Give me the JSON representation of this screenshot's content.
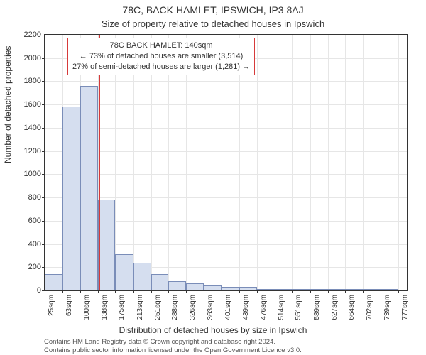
{
  "title_main": "78C, BACK HAMLET, IPSWICH, IP3 8AJ",
  "title_sub": "Size of property relative to detached houses in Ipswich",
  "y_axis_label": "Number of detached properties",
  "x_axis_label": "Distribution of detached houses by size in Ipswich",
  "chart": {
    "type": "histogram",
    "x_min": 25,
    "x_max": 795,
    "y_min": 0,
    "y_max": 2200,
    "y_ticks": [
      0,
      200,
      400,
      600,
      800,
      1000,
      1200,
      1400,
      1600,
      1800,
      2000,
      2200
    ],
    "x_tick_values": [
      25,
      63,
      100,
      138,
      175,
      213,
      251,
      288,
      326,
      363,
      401,
      439,
      476,
      514,
      551,
      589,
      627,
      664,
      702,
      739,
      777
    ],
    "x_tick_labels": [
      "25sqm",
      "63sqm",
      "100sqm",
      "138sqm",
      "175sqm",
      "213sqm",
      "251sqm",
      "288sqm",
      "326sqm",
      "363sqm",
      "401sqm",
      "439sqm",
      "476sqm",
      "514sqm",
      "551sqm",
      "589sqm",
      "627sqm",
      "664sqm",
      "702sqm",
      "739sqm",
      "777sqm"
    ],
    "bars": [
      {
        "x0": 25,
        "x1": 63,
        "value": 140
      },
      {
        "x0": 63,
        "x1": 100,
        "value": 1580
      },
      {
        "x0": 100,
        "x1": 138,
        "value": 1760
      },
      {
        "x0": 138,
        "x1": 175,
        "value": 780
      },
      {
        "x0": 175,
        "x1": 213,
        "value": 310
      },
      {
        "x0": 213,
        "x1": 251,
        "value": 240
      },
      {
        "x0": 251,
        "x1": 288,
        "value": 140
      },
      {
        "x0": 288,
        "x1": 326,
        "value": 80
      },
      {
        "x0": 326,
        "x1": 363,
        "value": 60
      },
      {
        "x0": 363,
        "x1": 401,
        "value": 40
      },
      {
        "x0": 401,
        "x1": 439,
        "value": 30
      },
      {
        "x0": 439,
        "x1": 476,
        "value": 30
      },
      {
        "x0": 476,
        "x1": 514,
        "value": 15
      },
      {
        "x0": 514,
        "x1": 551,
        "value": 10
      },
      {
        "x0": 551,
        "x1": 589,
        "value": 8
      },
      {
        "x0": 589,
        "x1": 627,
        "value": 6
      },
      {
        "x0": 627,
        "x1": 664,
        "value": 5
      },
      {
        "x0": 664,
        "x1": 702,
        "value": 3
      },
      {
        "x0": 702,
        "x1": 739,
        "value": 2
      },
      {
        "x0": 739,
        "x1": 777,
        "value": 1
      }
    ],
    "bar_fill": "#d5deef",
    "bar_stroke": "#7a8db8",
    "grid_color": "#e6e6e6",
    "background_color": "#ffffff",
    "reference_line": {
      "x": 140,
      "color": "#d63a3a",
      "width": 1.5
    },
    "annotation": {
      "border_color": "#d63a3a",
      "line1": "78C BACK HAMLET: 140sqm",
      "line2": "← 73% of detached houses are smaller (3,514)",
      "line3": "27% of semi-detached houses are larger (1,281) →"
    }
  },
  "footnote1": "Contains HM Land Registry data © Crown copyright and database right 2024.",
  "footnote2": "Contains public sector information licensed under the Open Government Licence v3.0."
}
